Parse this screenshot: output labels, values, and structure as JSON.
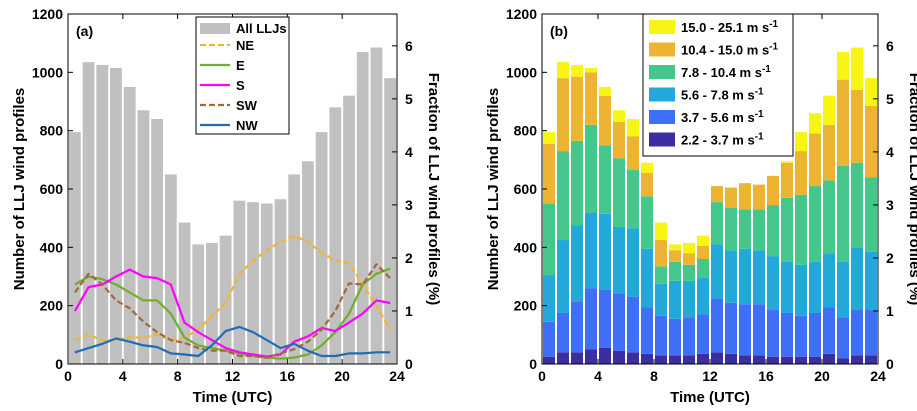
{
  "chart_data": [
    {
      "type": "bar",
      "panel_label": "(a)",
      "xlabel": "Time (UTC)",
      "ylabel": "Number of LLJ wind profiles",
      "y2label": "Fraction of LLJ wind profiles (%)",
      "xlim": [
        0,
        24
      ],
      "ylim": [
        0,
        1200
      ],
      "y2lim": [
        0,
        6.6
      ],
      "xticks": [
        "0",
        "4",
        "8",
        "12",
        "16",
        "20",
        "24"
      ],
      "yticks": [
        "0",
        "200",
        "400",
        "600",
        "800",
        "1000",
        "1200"
      ],
      "y2ticks": [
        "0",
        "1",
        "2",
        "3",
        "4",
        "5",
        "6"
      ],
      "bar_series": {
        "name": "All LLJs",
        "color": "#c0c0c0",
        "x": [
          0.5,
          1.5,
          2.5,
          3.5,
          4.5,
          5.5,
          6.5,
          7.5,
          8.5,
          9.5,
          10.5,
          11.5,
          12.5,
          13.5,
          14.5,
          15.5,
          16.5,
          17.5,
          18.5,
          19.5,
          20.5,
          21.5,
          22.5,
          23.5
        ],
        "values": [
          795,
          1035,
          1025,
          1015,
          950,
          870,
          840,
          650,
          485,
          410,
          415,
          440,
          560,
          555,
          550,
          565,
          650,
          695,
          795,
          880,
          920,
          1070,
          1085,
          980
        ]
      },
      "line_x": [
        0.5,
        1.5,
        2.5,
        3.5,
        4.5,
        5.5,
        6.5,
        7.5,
        8.5,
        9.5,
        10.5,
        11.5,
        12.5,
        13.5,
        14.5,
        15.5,
        16.5,
        17.5,
        18.5,
        19.5,
        20.5,
        21.5,
        22.5,
        23.5
      ],
      "line_series": [
        {
          "name": "NE",
          "color": "#f5b32e",
          "dash": "6,3",
          "values": [
            0.45,
            0.55,
            0.45,
            0.45,
            0.5,
            0.5,
            0.55,
            0.45,
            0.5,
            0.65,
            0.9,
            1.15,
            1.7,
            1.95,
            2.15,
            2.3,
            2.42,
            2.3,
            2.1,
            1.95,
            1.9,
            1.5,
            1.1,
            0.65
          ]
        },
        {
          "name": "E",
          "color": "#72ad2f",
          "dash": "",
          "values": [
            1.5,
            1.65,
            1.6,
            1.5,
            1.35,
            1.2,
            1.2,
            0.95,
            0.5,
            0.35,
            0.3,
            0.25,
            0.2,
            0.15,
            0.12,
            0.1,
            0.12,
            0.18,
            0.35,
            0.6,
            0.95,
            1.5,
            1.7,
            1.8
          ]
        },
        {
          "name": "S",
          "color": "#ff00ff",
          "dash": "",
          "values": [
            1.0,
            1.45,
            1.5,
            1.65,
            1.78,
            1.65,
            1.62,
            1.5,
            0.78,
            0.6,
            0.45,
            0.3,
            0.22,
            0.18,
            0.14,
            0.18,
            0.42,
            0.52,
            0.68,
            0.62,
            0.78,
            0.95,
            1.2,
            1.15
          ]
        },
        {
          "name": "SW",
          "color": "#9e6a38",
          "dash": "6,3",
          "values": [
            1.35,
            1.7,
            1.5,
            1.2,
            1.05,
            0.8,
            0.6,
            0.45,
            0.4,
            0.3,
            0.25,
            0.25,
            0.15,
            0.15,
            0.12,
            0.2,
            0.28,
            0.42,
            0.65,
            1.0,
            1.52,
            1.5,
            1.88,
            1.62
          ]
        },
        {
          "name": "NW",
          "color": "#1f6eb5",
          "dash": "",
          "values": [
            0.22,
            0.3,
            0.38,
            0.48,
            0.42,
            0.35,
            0.32,
            0.2,
            0.18,
            0.15,
            0.35,
            0.62,
            0.7,
            0.6,
            0.45,
            0.3,
            0.38,
            0.25,
            0.15,
            0.15,
            0.2,
            0.2,
            0.22,
            0.22
          ]
        }
      ],
      "legend_placement": "top-center"
    },
    {
      "type": "bar",
      "stacked": true,
      "panel_label": "(b)",
      "xlabel": "Time (UTC)",
      "ylabel": "Number of LLJ wind profiles",
      "y2label": "Fraction of LLJ wind profiles (%)",
      "xlim": [
        0,
        24
      ],
      "ylim": [
        0,
        1200
      ],
      "y2lim": [
        0,
        6.6
      ],
      "xticks": [
        "0",
        "4",
        "8",
        "12",
        "16",
        "20",
        "24"
      ],
      "yticks": [
        "0",
        "200",
        "400",
        "600",
        "800",
        "1000",
        "1200"
      ],
      "y2ticks": [
        "0",
        "1",
        "2",
        "3",
        "4",
        "5",
        "6"
      ],
      "x": [
        0.5,
        1.5,
        2.5,
        3.5,
        4.5,
        5.5,
        6.5,
        7.5,
        8.5,
        9.5,
        10.5,
        11.5,
        12.5,
        13.5,
        14.5,
        15.5,
        16.5,
        17.5,
        18.5,
        19.5,
        20.5,
        21.5,
        22.5,
        23.5
      ],
      "series": [
        {
          "name": "2.2 - 3.7 m s",
          "unit_sup": "-1",
          "color": "#3a2ea0",
          "values": [
            25,
            40,
            40,
            50,
            55,
            45,
            40,
            35,
            30,
            30,
            30,
            35,
            40,
            35,
            30,
            30,
            25,
            25,
            25,
            25,
            35,
            20,
            30,
            30
          ]
        },
        {
          "name": "3.7 - 5.6 m s",
          "unit_sup": "-1",
          "color": "#3f6ef7",
          "values": [
            120,
            135,
            175,
            210,
            200,
            195,
            190,
            160,
            135,
            125,
            130,
            135,
            185,
            175,
            175,
            175,
            160,
            150,
            140,
            150,
            160,
            140,
            155,
            155
          ]
        },
        {
          "name": "5.6 - 7.8 m s",
          "unit_sup": "-1",
          "color": "#23a9d9",
          "values": [
            160,
            250,
            260,
            260,
            260,
            230,
            235,
            200,
            110,
            130,
            125,
            125,
            185,
            180,
            190,
            185,
            185,
            175,
            175,
            175,
            185,
            190,
            215,
            200
          ]
        },
        {
          "name": "7.8 - 10.4 m s",
          "unit_sup": "-1",
          "color": "#45c78c",
          "values": [
            245,
            305,
            290,
            300,
            235,
            235,
            200,
            180,
            60,
            65,
            55,
            65,
            145,
            145,
            135,
            140,
            175,
            220,
            240,
            260,
            250,
            330,
            290,
            255
          ]
        },
        {
          "name": "10.4 - 15.0 m s",
          "unit_sup": "-1",
          "color": "#ecb432",
          "values": [
            205,
            250,
            220,
            180,
            170,
            125,
            115,
            80,
            90,
            40,
            40,
            45,
            55,
            70,
            90,
            85,
            100,
            120,
            150,
            180,
            190,
            295,
            250,
            245
          ]
        },
        {
          "name": "15.0 - 25.1 m s",
          "unit_sup": "-1",
          "color": "#f8f514",
          "values": [
            40,
            55,
            40,
            15,
            30,
            40,
            60,
            35,
            60,
            20,
            35,
            35,
            0,
            0,
            0,
            0,
            0,
            5,
            65,
            70,
            100,
            95,
            145,
            95
          ]
        }
      ],
      "legend_placement": "top-center"
    }
  ]
}
